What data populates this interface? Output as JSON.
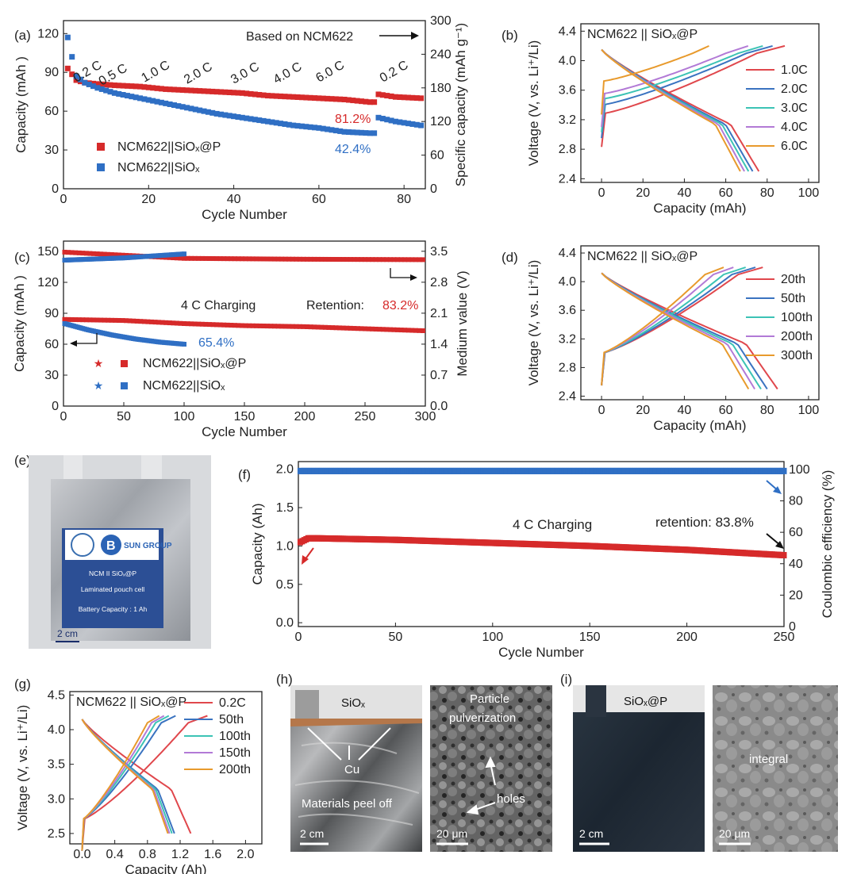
{
  "colors": {
    "red": "#d62a2a",
    "blue": "#2f6fc4",
    "c1": "#e0474c",
    "c2": "#3a73c0",
    "c3": "#3cc3b5",
    "c4": "#b27ad6",
    "c5": "#e89a2c"
  },
  "panels": {
    "a": "(a)",
    "b": "(b)",
    "c": "(c)",
    "d": "(d)",
    "e": "(e)",
    "f": "(f)",
    "g": "(g)",
    "h": "(h)",
    "i": "(i)"
  },
  "photos": {
    "e": {
      "labels": [
        "NCM II SiOₓ@P",
        "Laminated pouch cell",
        "Battery Capacity : 1 Ah"
      ],
      "logo": "SUN GROUP",
      "scalebar": "2 cm"
    },
    "h": {
      "label": "SiOₓ",
      "cu": "Cu",
      "peel": "Materials peel off",
      "scalebar": "2 cm",
      "sem_title": [
        "Particle",
        "pulverization"
      ],
      "holes": "holes",
      "sem_scalebar": "20 μm"
    },
    "i": {
      "label": "SiOₓ@P",
      "scalebar": "2 cm",
      "sem_title": "integral",
      "sem_scalebar": "20 μm"
    }
  },
  "chart_data": [
    {
      "id": "a",
      "type": "scatter",
      "xlabel": "Cycle Number",
      "ylabel": "Capacity (mAh )",
      "y2label": "Specific capacity (mAh g⁻¹)",
      "xlim": [
        0,
        85
      ],
      "ylim": [
        0,
        130
      ],
      "y2lim": [
        0,
        300
      ],
      "xticks": [
        0,
        20,
        40,
        60,
        80
      ],
      "yticks": [
        0,
        30,
        60,
        90,
        120
      ],
      "y2ticks": [
        0,
        60,
        120,
        180,
        240,
        300
      ],
      "rate_labels": [
        {
          "text": "0.2 C",
          "x": 3
        },
        {
          "text": "0.5 C",
          "x": 9
        },
        {
          "text": "1.0 C",
          "x": 19
        },
        {
          "text": "2.0 C",
          "x": 29
        },
        {
          "text": "3.0 C",
          "x": 40
        },
        {
          "text": "4.0 C",
          "x": 50
        },
        {
          "text": "6.0 C",
          "x": 60
        },
        {
          "text": "0.2 C",
          "x": 75
        }
      ],
      "annotations": {
        "based": "Based on NCM622",
        "r1": "81.2%",
        "r2": "42.4%"
      },
      "series": [
        {
          "name": "NCM622||SiOₓ@P",
          "marker": "square",
          "color": "red",
          "x": [
            1,
            3,
            5,
            8,
            12,
            18,
            24,
            30,
            36,
            42,
            48,
            54,
            60,
            66,
            72,
            74,
            78,
            84
          ],
          "y": [
            93,
            84,
            82,
            81,
            80,
            79,
            77,
            76,
            75,
            74,
            72,
            71,
            70,
            69,
            67,
            73,
            71,
            70
          ]
        },
        {
          "name": "NCM622||SiOₓ",
          "marker": "square",
          "color": "blue",
          "x": [
            1,
            3,
            5,
            8,
            12,
            18,
            24,
            30,
            36,
            42,
            48,
            54,
            60,
            66,
            72,
            74,
            78,
            84
          ],
          "y": [
            117,
            87,
            82,
            78,
            74,
            70,
            66,
            62,
            58,
            55,
            52,
            49,
            47,
            44,
            43,
            55,
            52,
            49
          ]
        }
      ]
    },
    {
      "id": "b",
      "type": "line",
      "title": "NCM622 || SiOₓ@P",
      "xlabel": "Capacity (mAh)",
      "ylabel": "Voltage (V, vs. Li⁺/Li)",
      "xlim": [
        -10,
        105
      ],
      "ylim": [
        2.35,
        4.5
      ],
      "xticks": [
        0,
        20,
        40,
        60,
        80,
        100
      ],
      "yticks": [
        2.4,
        2.8,
        3.2,
        3.6,
        4.0,
        4.4
      ],
      "series": [
        {
          "name": "1.0C",
          "color": "c1",
          "charge_cap": 75,
          "charge_v0": 3.28,
          "discharge_cap": 76
        },
        {
          "name": "2.0C",
          "color": "c2",
          "charge_cap": 70,
          "charge_v0": 3.4,
          "discharge_cap": 73
        },
        {
          "name": "3.0C",
          "color": "c3",
          "charge_cap": 66,
          "charge_v0": 3.48,
          "discharge_cap": 71
        },
        {
          "name": "4.0C",
          "color": "c4",
          "charge_cap": 60,
          "charge_v0": 3.55,
          "discharge_cap": 69
        },
        {
          "name": "6.0C",
          "color": "c5",
          "charge_cap": 44,
          "charge_v0": 3.72,
          "discharge_cap": 67
        }
      ]
    },
    {
      "id": "c",
      "type": "scatter",
      "xlabel": "Cycle Number",
      "ylabel": "Capacity (mAh )",
      "y2label": "Medium value (V)",
      "xlim": [
        0,
        300
      ],
      "ylim": [
        0,
        160
      ],
      "y2lim": [
        0,
        3.73
      ],
      "xticks": [
        0,
        50,
        100,
        150,
        200,
        250,
        300
      ],
      "yticks": [
        0,
        30,
        60,
        90,
        120,
        150
      ],
      "y2ticks": [
        0.0,
        0.7,
        1.4,
        2.1,
        2.8,
        3.5
      ],
      "annotations": {
        "charging": "4 C Charging",
        "retention": "Retention: ",
        "r1": "83.2%",
        "r2": "65.4%"
      },
      "legend": [
        "NCM622||SiOₓ@P",
        "NCM622||SiOₓ"
      ],
      "series": [
        {
          "name": "NCM622||SiOₓ@P capacity",
          "color": "red",
          "x": [
            1,
            50,
            100,
            150,
            200,
            250,
            300
          ],
          "y": [
            84,
            83,
            80,
            78,
            77,
            75,
            73
          ]
        },
        {
          "name": "NCM622||SiOₓ capacity",
          "color": "blue",
          "x": [
            1,
            20,
            40,
            60,
            80,
            100
          ],
          "y": [
            80,
            74,
            69,
            65,
            62,
            60
          ]
        },
        {
          "name": "NCM622||SiOₓ@P medium voltage",
          "color": "red",
          "axis": "y2",
          "x": [
            1,
            100,
            200,
            300
          ],
          "y": [
            3.48,
            3.34,
            3.32,
            3.31
          ]
        },
        {
          "name": "NCM622||SiOₓ medium voltage",
          "color": "blue",
          "axis": "y2",
          "x": [
            1,
            50,
            100
          ],
          "y": [
            3.3,
            3.35,
            3.44
          ]
        }
      ]
    },
    {
      "id": "d",
      "type": "line",
      "title": "NCM622 || SiOₓ@P",
      "xlabel": "Capacity (mAh)",
      "ylabel": "Voltage (V, vs. Li⁺/Li)",
      "xlim": [
        -10,
        105
      ],
      "ylim": [
        2.35,
        4.5
      ],
      "xticks": [
        0,
        20,
        40,
        60,
        80,
        100
      ],
      "yticks": [
        2.4,
        2.8,
        3.2,
        3.6,
        4.0,
        4.4
      ],
      "series": [
        {
          "name": "20th",
          "color": "c1",
          "charge_cap": 66,
          "discharge_cap": 85
        },
        {
          "name": "50th",
          "color": "c2",
          "charge_cap": 63,
          "discharge_cap": 80
        },
        {
          "name": "100th",
          "color": "c3",
          "charge_cap": 59,
          "discharge_cap": 77
        },
        {
          "name": "200th",
          "color": "c4",
          "charge_cap": 54,
          "discharge_cap": 74
        },
        {
          "name": "300th",
          "color": "c5",
          "charge_cap": 50,
          "discharge_cap": 71
        }
      ]
    },
    {
      "id": "f",
      "type": "scatter",
      "xlabel": "Cycle Number",
      "ylabel": "Capacity (Ah)",
      "y2label": "Coulombic efficiency  (%)",
      "xlim": [
        0,
        250
      ],
      "ylim": [
        -0.05,
        2.1
      ],
      "y2lim": [
        0,
        105
      ],
      "xticks": [
        0,
        50,
        100,
        150,
        200,
        250
      ],
      "yticks": [
        0.0,
        0.5,
        1.0,
        1.5,
        2.0
      ],
      "y2ticks": [
        0,
        20,
        40,
        60,
        80,
        100
      ],
      "annotations": {
        "charging": "4 C Charging",
        "retention": "retention: 83.8%"
      },
      "series": [
        {
          "name": "Capacity",
          "color": "red",
          "x": [
            1,
            5,
            10,
            50,
            100,
            150,
            200,
            250
          ],
          "y": [
            1.05,
            1.1,
            1.1,
            1.08,
            1.04,
            1.0,
            0.95,
            0.88
          ]
        },
        {
          "name": "Coulombic efficiency",
          "color": "blue",
          "axis": "y2",
          "x": [
            1,
            250
          ],
          "y": [
            99,
            99
          ]
        }
      ]
    },
    {
      "id": "g",
      "type": "line",
      "title": "NCM622 || SiOₓ@P",
      "xlabel": "Capacity (Ah)",
      "ylabel": "Voltage (V, vs. Li⁺/Li)",
      "xlim": [
        -0.15,
        2.2
      ],
      "ylim": [
        2.35,
        4.55
      ],
      "xticks": [
        0.0,
        0.4,
        0.8,
        1.2,
        1.6,
        2.0
      ],
      "yticks": [
        2.5,
        3.0,
        3.5,
        4.0,
        4.5
      ],
      "series": [
        {
          "name": "0.2C",
          "color": "c1",
          "charge_cap": 1.3,
          "discharge_cap": 1.33
        },
        {
          "name": "50th",
          "color": "c2",
          "charge_cap": 0.97,
          "discharge_cap": 1.13
        },
        {
          "name": "100th",
          "color": "c3",
          "charge_cap": 0.9,
          "discharge_cap": 1.1
        },
        {
          "name": "150th",
          "color": "c4",
          "charge_cap": 0.85,
          "discharge_cap": 1.07
        },
        {
          "name": "200th",
          "color": "c5",
          "charge_cap": 0.8,
          "discharge_cap": 1.05
        }
      ]
    }
  ]
}
